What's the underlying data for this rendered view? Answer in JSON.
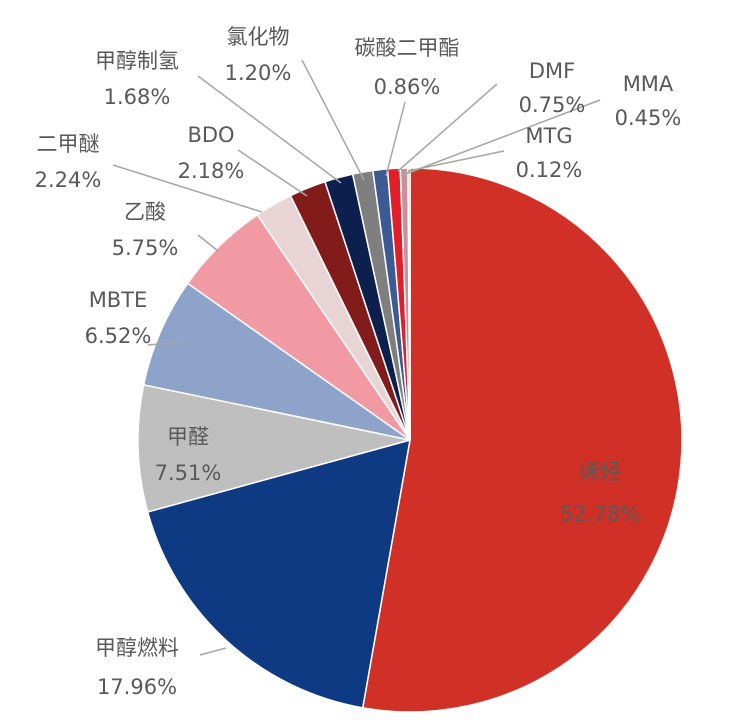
{
  "chart_data": {
    "type": "pie",
    "title": "",
    "start_angle_deg": 0,
    "direction": "clockwise",
    "slices": [
      {
        "label": "烯烃",
        "value": 52.78,
        "value_text": "52.78%",
        "color": "#d13026"
      },
      {
        "label": "甲醇燃料",
        "value": 17.96,
        "value_text": "17.96%",
        "color": "#0e3a84"
      },
      {
        "label": "甲醛",
        "value": 7.51,
        "value_text": "7.51%",
        "color": "#bfbfbf"
      },
      {
        "label": "MBTE",
        "value": 6.52,
        "value_text": "6.52%",
        "color": "#8ea3c9"
      },
      {
        "label": "乙酸",
        "value": 5.75,
        "value_text": "5.75%",
        "color": "#f29aa3"
      },
      {
        "label": "二甲醚",
        "value": 2.24,
        "value_text": "2.24%",
        "color": "#e8d3d5"
      },
      {
        "label": "BDO",
        "value": 2.18,
        "value_text": "2.18%",
        "color": "#821c1a"
      },
      {
        "label": "甲醇制氢",
        "value": 1.68,
        "value_text": "1.68%",
        "color": "#0d1f4d"
      },
      {
        "label": "氯化物",
        "value": 1.2,
        "value_text": "1.20%",
        "color": "#7f7f7f"
      },
      {
        "label": "碳酸二甲酯",
        "value": 0.86,
        "value_text": "0.86%",
        "color": "#3c5b94"
      },
      {
        "label": "DMF",
        "value": 0.75,
        "value_text": "0.75%",
        "color": "#e01f2a"
      },
      {
        "label": "MMA",
        "value": 0.45,
        "value_text": "0.45%",
        "color": "#c9909a"
      },
      {
        "label": "MTG",
        "value": 0.12,
        "value_text": "0.12%",
        "color": "#a0a0a0"
      }
    ]
  }
}
